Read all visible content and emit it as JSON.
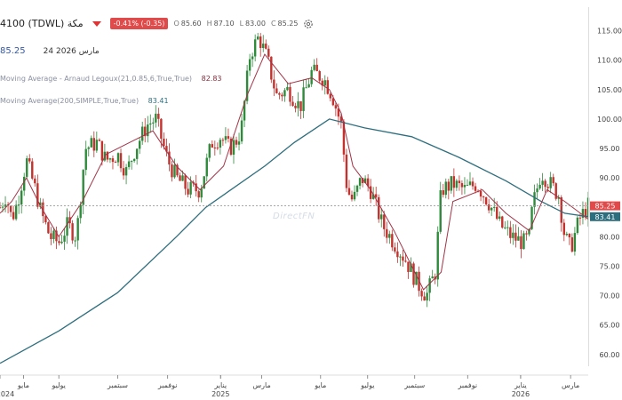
{
  "header": {
    "symbol_title": "4100 (TDWL) مكة",
    "change_badge": "-0.41% (-0.35)",
    "open_label": "O",
    "open": "85.60",
    "high_label": "H",
    "high": "87.10",
    "low_label": "L",
    "low": "83.00",
    "close_label": "C",
    "close": "85.25",
    "last_price": "85.25",
    "date": "24 مارس 2026"
  },
  "indicators": [
    {
      "label": "Moving Average - Arnaud Legoux(21,0.85,6,True,True)",
      "value": "82.83",
      "color": "#8a2a3a"
    },
    {
      "label": "Moving Average(200,SIMPLE,True,True)",
      "value": "83.41",
      "color": "#2d6e7e"
    }
  ],
  "watermark": "DirectFN",
  "colors": {
    "up": "#2f8a3c",
    "down": "#c2322e",
    "alma": "#a33347",
    "sma": "#2d6e7e",
    "badge": "#e04a4a"
  },
  "chart_data": {
    "type": "candlestick",
    "ylim": [
      58,
      116
    ],
    "y_ticks": [
      60,
      65,
      70,
      75,
      80,
      85,
      90,
      95,
      100,
      105,
      110,
      115
    ],
    "grid": false,
    "price_labels": [
      {
        "value": 85.25,
        "text": "85.25",
        "color": "#e04a4a"
      },
      {
        "value": 83.41,
        "text": "83.41",
        "color": "#2d6e7e"
      }
    ],
    "x_ticks": [
      {
        "label": "2024",
        "t": 0.0
      },
      {
        "label": "مايو",
        "t": 0.04
      },
      {
        "label": "يوليو",
        "t": 0.1
      },
      {
        "label": "سبتمبر",
        "t": 0.2
      },
      {
        "label": "نوفمبر",
        "t": 0.285
      },
      {
        "label": "يناير",
        "t": 0.375
      },
      {
        "label": "2025",
        "t": 0.375
      },
      {
        "label": "مارس",
        "t": 0.445
      },
      {
        "label": "مايو",
        "t": 0.545
      },
      {
        "label": "يوليو",
        "t": 0.625
      },
      {
        "label": "سبتمبر",
        "t": 0.705
      },
      {
        "label": "نوفمبر",
        "t": 0.795
      },
      {
        "label": "يناير",
        "t": 0.885
      },
      {
        "label": "2026",
        "t": 0.885
      },
      {
        "label": "مارس",
        "t": 0.97
      }
    ],
    "price_path": [
      [
        0,
        85
      ],
      [
        0.01,
        87
      ],
      [
        0.02,
        83
      ],
      [
        0.03,
        86
      ],
      [
        0.045,
        93
      ],
      [
        0.06,
        88
      ],
      [
        0.07,
        84
      ],
      [
        0.085,
        80
      ],
      [
        0.1,
        79
      ],
      [
        0.115,
        82
      ],
      [
        0.13,
        80
      ],
      [
        0.145,
        95
      ],
      [
        0.165,
        96
      ],
      [
        0.18,
        93
      ],
      [
        0.2,
        94
      ],
      [
        0.215,
        91
      ],
      [
        0.23,
        95
      ],
      [
        0.25,
        99
      ],
      [
        0.265,
        100
      ],
      [
        0.285,
        93
      ],
      [
        0.3,
        90
      ],
      [
        0.32,
        88
      ],
      [
        0.34,
        88
      ],
      [
        0.36,
        96
      ],
      [
        0.375,
        97
      ],
      [
        0.39,
        95
      ],
      [
        0.4,
        96
      ],
      [
        0.41,
        98
      ],
      [
        0.425,
        111
      ],
      [
        0.44,
        114
      ],
      [
        0.455,
        110
      ],
      [
        0.47,
        104
      ],
      [
        0.49,
        105
      ],
      [
        0.51,
        102
      ],
      [
        0.53,
        108
      ],
      [
        0.55,
        107
      ],
      [
        0.565,
        104
      ],
      [
        0.58,
        99
      ],
      [
        0.59,
        88
      ],
      [
        0.6,
        86
      ],
      [
        0.615,
        90
      ],
      [
        0.63,
        88
      ],
      [
        0.65,
        82
      ],
      [
        0.67,
        79
      ],
      [
        0.69,
        76
      ],
      [
        0.71,
        72
      ],
      [
        0.725,
        70
      ],
      [
        0.74,
        74
      ],
      [
        0.75,
        88
      ],
      [
        0.77,
        89
      ],
      [
        0.79,
        88
      ],
      [
        0.81,
        89
      ],
      [
        0.83,
        86
      ],
      [
        0.85,
        82
      ],
      [
        0.87,
        80
      ],
      [
        0.89,
        79
      ],
      [
        0.9,
        80
      ],
      [
        0.905,
        85
      ],
      [
        0.92,
        91
      ],
      [
        0.935,
        89
      ],
      [
        0.95,
        87
      ],
      [
        0.96,
        80
      ],
      [
        0.97,
        78
      ],
      [
        0.985,
        83
      ],
      [
        1.0,
        85.25
      ]
    ],
    "sma200_path": [
      [
        0,
        58.5
      ],
      [
        0.1,
        64
      ],
      [
        0.2,
        70.5
      ],
      [
        0.3,
        80
      ],
      [
        0.35,
        85
      ],
      [
        0.45,
        92
      ],
      [
        0.5,
        96
      ],
      [
        0.56,
        100
      ],
      [
        0.62,
        98.5
      ],
      [
        0.7,
        97
      ],
      [
        0.78,
        93.5
      ],
      [
        0.86,
        89.5
      ],
      [
        0.92,
        86
      ],
      [
        0.96,
        84
      ],
      [
        1.0,
        83.41
      ]
    ],
    "alma_path": [
      [
        0,
        84
      ],
      [
        0.02,
        86
      ],
      [
        0.045,
        90
      ],
      [
        0.07,
        85
      ],
      [
        0.1,
        80
      ],
      [
        0.14,
        86
      ],
      [
        0.18,
        94
      ],
      [
        0.22,
        96
      ],
      [
        0.26,
        98
      ],
      [
        0.3,
        92
      ],
      [
        0.34,
        88
      ],
      [
        0.38,
        92
      ],
      [
        0.42,
        104
      ],
      [
        0.45,
        111
      ],
      [
        0.49,
        106
      ],
      [
        0.53,
        107
      ],
      [
        0.56,
        105
      ],
      [
        0.58,
        101
      ],
      [
        0.6,
        92
      ],
      [
        0.63,
        88
      ],
      [
        0.67,
        81
      ],
      [
        0.72,
        71
      ],
      [
        0.75,
        74
      ],
      [
        0.77,
        86
      ],
      [
        0.82,
        88
      ],
      [
        0.86,
        84
      ],
      [
        0.9,
        81
      ],
      [
        0.93,
        88
      ],
      [
        0.96,
        86
      ],
      [
        1.0,
        83
      ]
    ]
  }
}
